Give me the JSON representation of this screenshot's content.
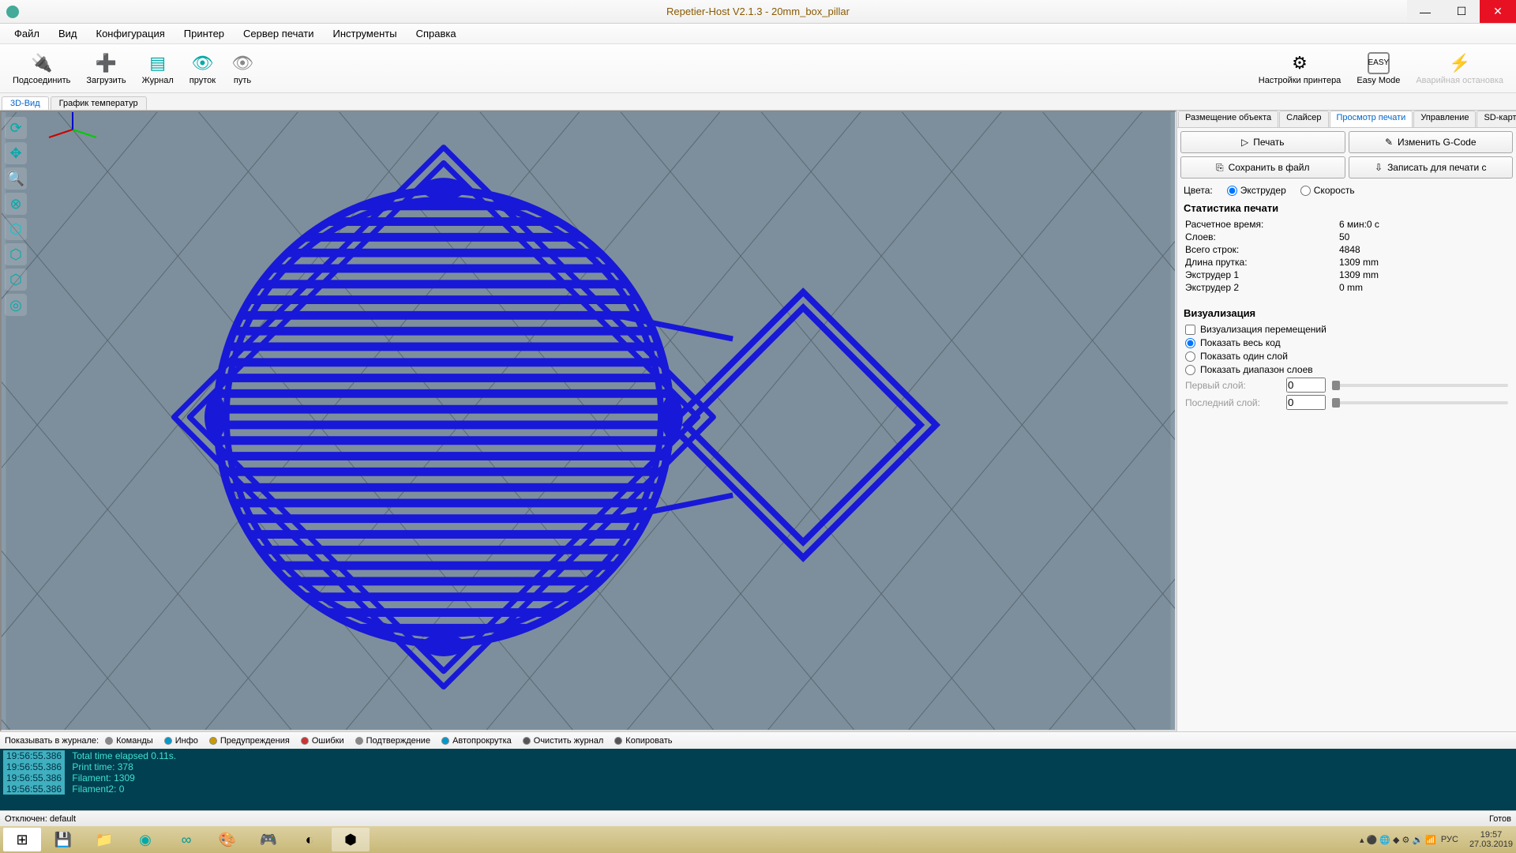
{
  "title": "Repetier-Host V2.1.3 - 20mm_box_pillar",
  "menu": [
    "Файл",
    "Вид",
    "Конфигурация",
    "Принтер",
    "Сервер печати",
    "Инструменты",
    "Справка"
  ],
  "toolbar": {
    "left": [
      {
        "label": "Подсоединить",
        "icon": "🔌"
      },
      {
        "label": "Загрузить",
        "icon": "➕"
      },
      {
        "label": "Журнал",
        "icon": "▤",
        "color": "#0aa"
      },
      {
        "label": "пруток",
        "icon": "👁",
        "color": "#0aa"
      },
      {
        "label": "путь",
        "icon": "👁",
        "color": "#888"
      }
    ],
    "right": [
      {
        "label": "Настройки принтера",
        "icon": "⚙"
      },
      {
        "label": "Easy Mode",
        "icon": "EASY"
      },
      {
        "label": "Аварийная остановка",
        "icon": "⚡",
        "disabled": true
      }
    ]
  },
  "view_tabs": [
    "3D-Вид",
    "График температур"
  ],
  "right_tabs": [
    "Размещение объекта",
    "Слайсер",
    "Просмотр печати",
    "Управление",
    "SD-карта"
  ],
  "right_tabs_active": 2,
  "buttons": {
    "print": "Печать",
    "edit": "Изменить G-Code",
    "save": "Сохранить в файл",
    "sd": "Записать для печати с"
  },
  "colors_label": "Цвета:",
  "radio_extruder": "Экструдер",
  "radio_speed": "Скорость",
  "stats_header": "Статистика печати",
  "stats": [
    {
      "k": "Расчетное время:",
      "v": "6 мин:0 с"
    },
    {
      "k": "Слоев:",
      "v": "50"
    },
    {
      "k": "Всего строк:",
      "v": "4848"
    },
    {
      "k": "Длина прутка:",
      "v": "1309 mm"
    },
    {
      "k": "Экструдер 1",
      "v": "1309 mm"
    },
    {
      "k": "Экструдер 2",
      "v": "0 mm"
    }
  ],
  "vis_header": "Визуализация",
  "vis_moves": "Визуализация перемещений",
  "vis_all": "Показать весь код",
  "vis_one": "Показать один слой",
  "vis_range": "Показать диапазон слоев",
  "first_layer": "Первый слой:",
  "last_layer": "Последний слой:",
  "layer_val": "0",
  "log_label": "Показывать в журнале:",
  "log_filters": [
    "Команды",
    "Инфо",
    "Предупреждения",
    "Ошибки",
    "Подтверждение",
    "Автопрокрутка",
    "Очистить журнал",
    "Копировать"
  ],
  "log_lines": [
    {
      "ts": "19:56:55.386",
      "txt": "<CuraEngine> Total time elapsed  0.11s."
    },
    {
      "ts": "19:56:55.386",
      "txt": "<CuraEngine> Print time: 378"
    },
    {
      "ts": "19:56:55.386",
      "txt": "<CuraEngine> Filament: 1309"
    },
    {
      "ts": "19:56:55.386",
      "txt": "<CuraEngine> Filament2: 0"
    }
  ],
  "status_left": "Отключен: default",
  "status_right": "Готов",
  "clock": {
    "time": "19:57",
    "date": "27.03.2019"
  },
  "lang": "РУС",
  "viewport": {
    "bg": "#7d8f9c",
    "grid": "#5a6872",
    "object": "#1818d8",
    "object_dark": "#0808a8"
  }
}
